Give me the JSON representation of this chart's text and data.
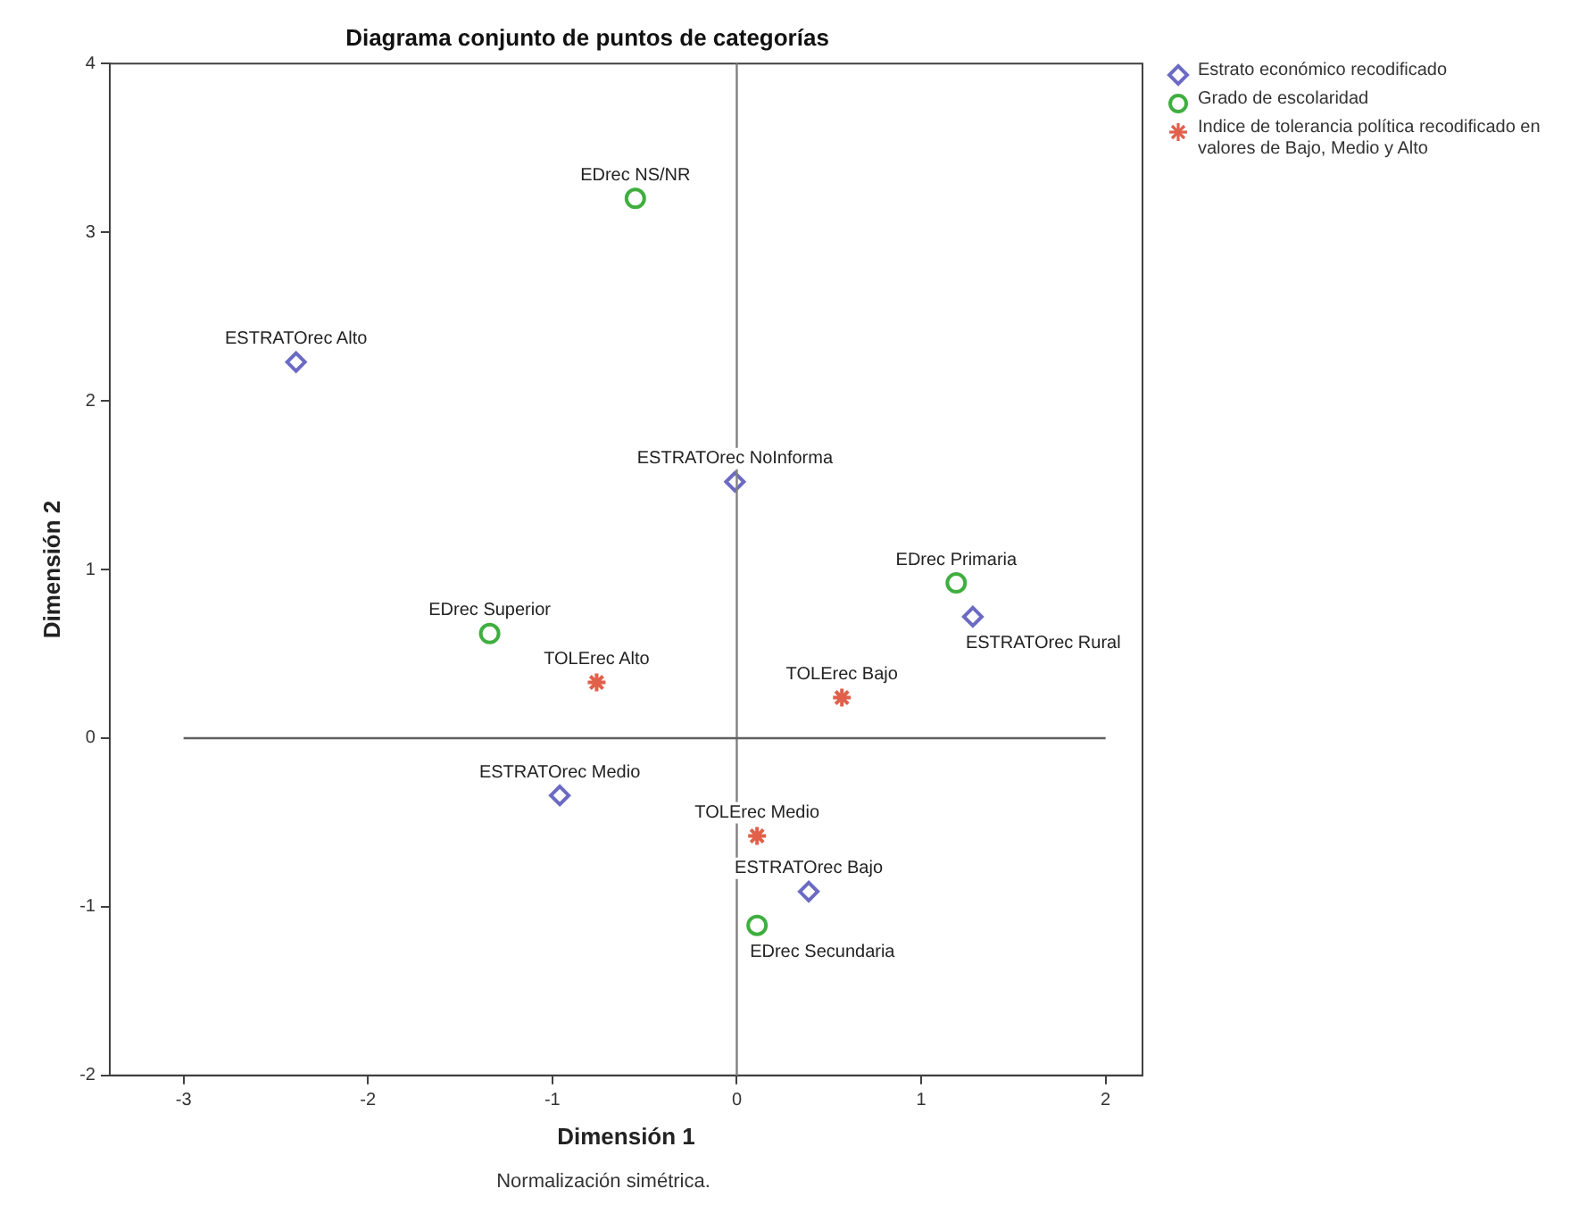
{
  "chart_data": {
    "type": "scatter",
    "title": "Diagrama conjunto de puntos de categorías",
    "xlabel": "Dimensión 1",
    "ylabel": "Dimensión 2",
    "xlim": [
      -3.4,
      2.2
    ],
    "xticks": [
      -3,
      -2,
      -1,
      0,
      1,
      2
    ],
    "ylim": [
      -2,
      4
    ],
    "yticks": [
      -2,
      -1,
      0,
      1,
      2,
      3,
      4
    ],
    "grid": false,
    "legend": "top right",
    "ref_lines": [
      {
        "axis": "x",
        "value": 0,
        "color": "#808080"
      },
      {
        "axis": "y",
        "value": 0,
        "color": "#606060"
      }
    ],
    "series": [
      {
        "name": "Estrato económico recodificado",
        "color": "#6b6bc4",
        "marker": "diamond",
        "x": [
          -2.39,
          -0.01,
          1.28,
          -0.96,
          0.39
        ],
        "values": [
          2.23,
          1.52,
          0.72,
          -0.34,
          -0.91
        ]
      },
      {
        "name": "Grado de escolaridad",
        "color": "#3fae3f",
        "marker": "circle",
        "x": [
          -0.55,
          1.19,
          -1.34,
          0.11
        ],
        "values": [
          3.2,
          0.92,
          0.62,
          -1.11
        ]
      },
      {
        "name": "Indice de tolerancia política recodificado en valores de Bajo, Medio y Alto",
        "color": "#e0604a",
        "marker": "cross",
        "x": [
          -0.76,
          0.57,
          0.11
        ],
        "values": [
          0.33,
          0.24,
          -0.58
        ]
      }
    ],
    "annotations": [
      {
        "text": "ESTRATOrec Alto",
        "x": -2.39,
        "y": 2.23
      },
      {
        "text": "ESTRATOrec NoInforma",
        "x": -0.01,
        "y": 1.52
      },
      {
        "text": "ESTRATOrec Rural",
        "x": 1.28,
        "y": 0.72
      },
      {
        "text": "ESTRATOrec Medio",
        "x": -0.96,
        "y": -0.34
      },
      {
        "text": "ESTRATOrec Bajo",
        "x": 0.39,
        "y": -0.91
      },
      {
        "text": "EDrec NS/NR",
        "x": -0.55,
        "y": 3.2
      },
      {
        "text": "EDrec Primaria",
        "x": 1.19,
        "y": 0.92
      },
      {
        "text": "EDrec Superior",
        "x": -1.34,
        "y": 0.62
      },
      {
        "text": "EDrec Secundaria",
        "x": 0.11,
        "y": -1.11
      },
      {
        "text": "TOLErec Alto",
        "x": -0.76,
        "y": 0.33
      },
      {
        "text": "TOLErec Bajo",
        "x": 0.57,
        "y": 0.24
      },
      {
        "text": "TOLErec Medio",
        "x": 0.11,
        "y": -0.58
      },
      "Normalización simétrica."
    ]
  }
}
